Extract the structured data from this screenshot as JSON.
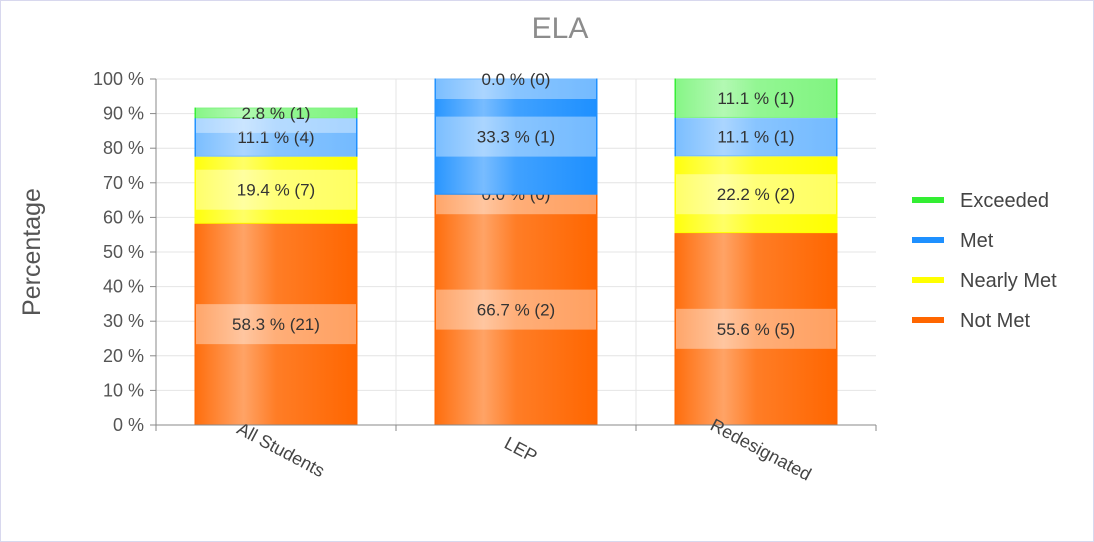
{
  "chart_data": {
    "type": "bar",
    "stacked": true,
    "title": "ELA",
    "ylabel": "Percentage",
    "xlabel": "",
    "ylim": [
      0,
      100
    ],
    "yticks": [
      "0 %",
      "10 %",
      "20 %",
      "30 %",
      "40 %",
      "50 %",
      "60 %",
      "70 %",
      "80 %",
      "90 %",
      "100 %"
    ],
    "categories": [
      "All Students",
      "LEP",
      "Redesignated"
    ],
    "series": [
      {
        "name": "Not Met",
        "color": "#ff6600",
        "values": [
          58.3,
          66.7,
          55.6
        ],
        "labels": [
          "58.3 %  (21)",
          "66.7 %  (2)",
          "55.6 %  (5)"
        ]
      },
      {
        "name": "Nearly Met",
        "color": "#ffff00",
        "values": [
          19.4,
          0.0,
          22.2
        ],
        "labels": [
          "19.4 %  (7)",
          "0.0 %  (0)",
          "22.2 %  (2)"
        ]
      },
      {
        "name": "Met",
        "color": "#1e90ff",
        "values": [
          11.1,
          33.3,
          11.1
        ],
        "labels": [
          "11.1 %  (4)",
          "33.3 %  (1)",
          "11.1 %  (1)"
        ]
      },
      {
        "name": "Exceeded",
        "color": "#33ee33",
        "values": [
          2.8,
          0.0,
          11.1
        ],
        "labels": [
          "2.8 %  (1)",
          "0.0 %  (0)",
          "11.1 %  (1)"
        ]
      }
    ],
    "legend": [
      "Exceeded",
      "Met",
      "Nearly Met",
      "Not Met"
    ],
    "legend_position": "right",
    "grid": true
  }
}
